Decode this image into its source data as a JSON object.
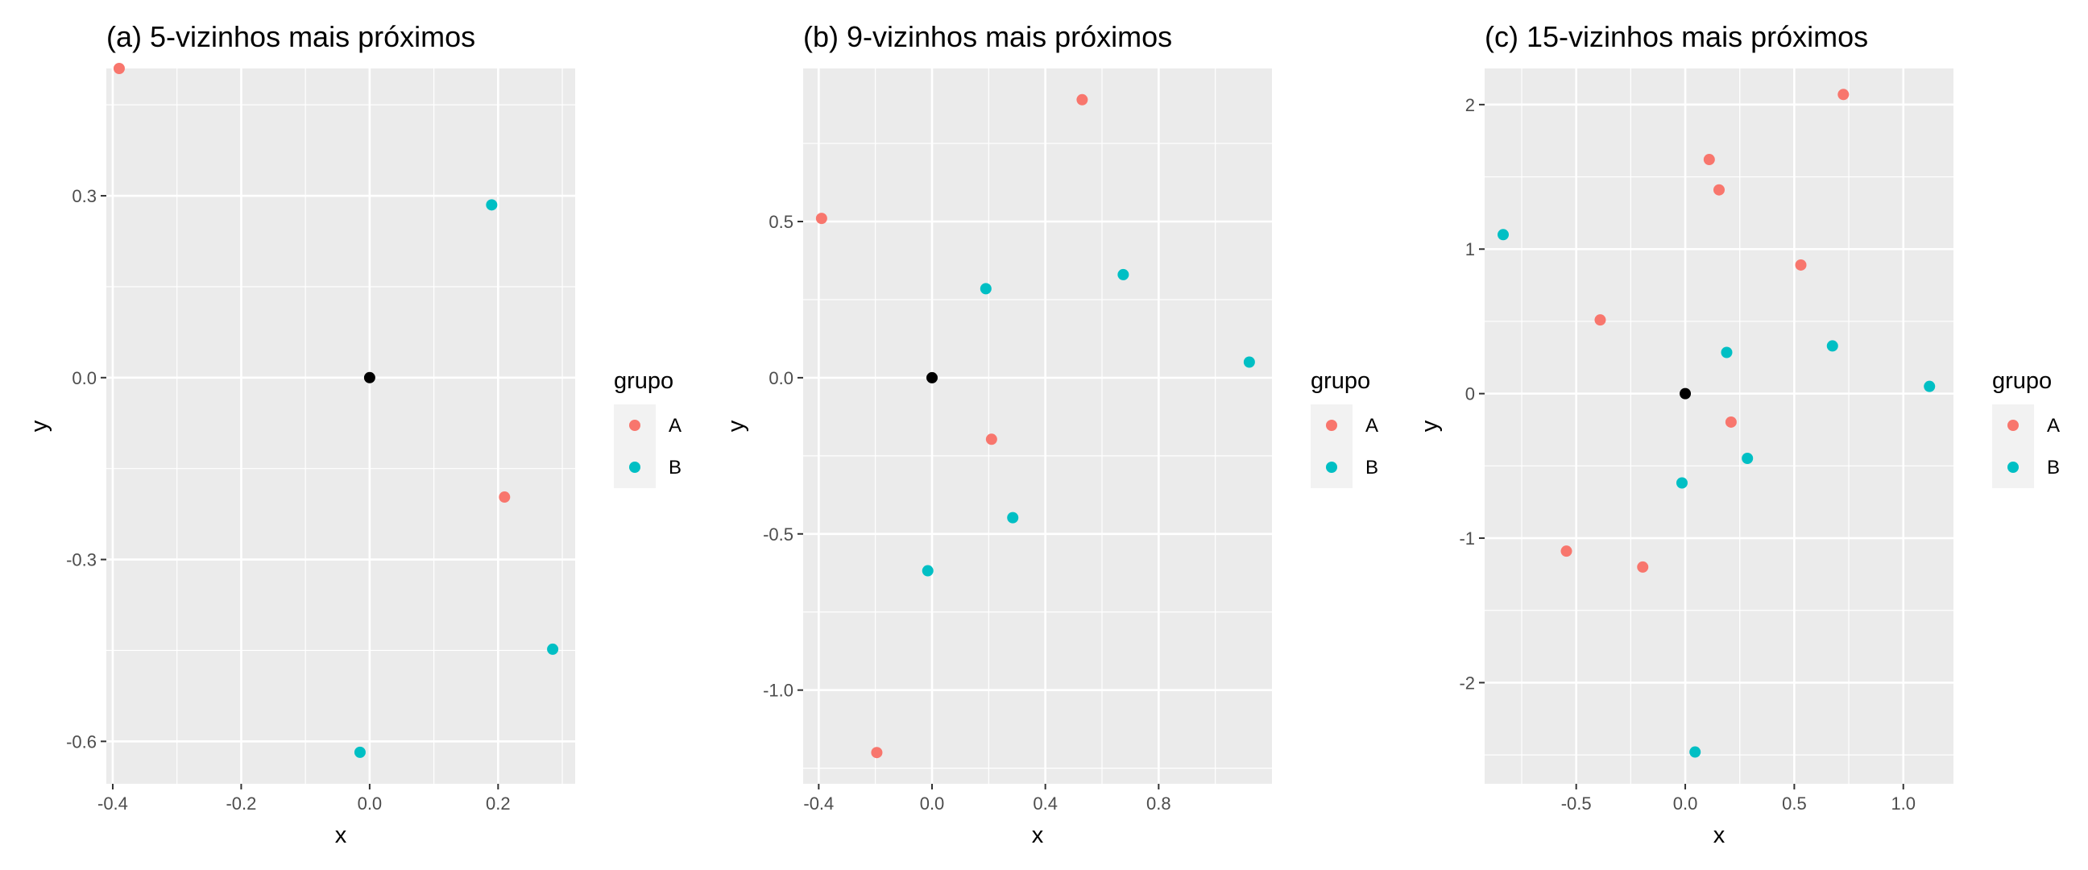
{
  "colors": {
    "A": "#F8766D",
    "B": "#00BFC4",
    "query": "#000000",
    "panel_bg": "#EBEBEB",
    "grid": "#FFFFFF"
  },
  "legend": {
    "title": "grupo",
    "labels": [
      "A",
      "B"
    ]
  },
  "chart_data": [
    {
      "type": "scatter",
      "title": "(a) 5-vizinhos mais próximos",
      "xlabel": "x",
      "ylabel": "y",
      "xlim": [
        -0.41,
        0.32
      ],
      "ylim": [
        -0.67,
        0.51
      ],
      "xticks": [
        -0.4,
        -0.2,
        0.0,
        0.2
      ],
      "xtick_labels": [
        "-0.4",
        "-0.2",
        "0.0",
        "0.2"
      ],
      "yticks": [
        -0.6,
        -0.3,
        0.0,
        0.3
      ],
      "ytick_labels": [
        "-0.6",
        "-0.3",
        "0.0",
        "0.3"
      ],
      "grid": true,
      "legend_position": "right",
      "points": [
        {
          "x": -0.39,
          "y": 0.51,
          "group": "A"
        },
        {
          "x": 0.19,
          "y": 0.285,
          "group": "B"
        },
        {
          "x": 0.0,
          "y": 0.0,
          "group": "query"
        },
        {
          "x": 0.21,
          "y": -0.197,
          "group": "A"
        },
        {
          "x": 0.285,
          "y": -0.448,
          "group": "B"
        },
        {
          "x": -0.015,
          "y": -0.618,
          "group": "B"
        }
      ]
    },
    {
      "type": "scatter",
      "title": "(b) 9-vizinhos mais próximos",
      "xlabel": "x",
      "ylabel": "y",
      "xlim": [
        -0.455,
        1.2
      ],
      "ylim": [
        -1.3,
        0.99
      ],
      "xticks": [
        -0.4,
        0.0,
        0.4,
        0.8
      ],
      "xtick_labels": [
        "-0.4",
        "0.0",
        "0.4",
        "0.8"
      ],
      "yticks": [
        -1.0,
        -0.5,
        0.0,
        0.5
      ],
      "ytick_labels": [
        "-1.0",
        "-0.5",
        "0.0",
        "0.5"
      ],
      "grid": true,
      "legend_position": "right",
      "points": [
        {
          "x": 0.53,
          "y": 0.89,
          "group": "A"
        },
        {
          "x": -0.39,
          "y": 0.51,
          "group": "A"
        },
        {
          "x": 0.19,
          "y": 0.285,
          "group": "B"
        },
        {
          "x": 0.675,
          "y": 0.33,
          "group": "B"
        },
        {
          "x": 1.12,
          "y": 0.05,
          "group": "B"
        },
        {
          "x": 0.0,
          "y": 0.0,
          "group": "query"
        },
        {
          "x": 0.21,
          "y": -0.197,
          "group": "A"
        },
        {
          "x": 0.285,
          "y": -0.448,
          "group": "B"
        },
        {
          "x": -0.015,
          "y": -0.618,
          "group": "B"
        },
        {
          "x": -0.195,
          "y": -1.2,
          "group": "A"
        }
      ]
    },
    {
      "type": "scatter",
      "title": "(c) 15-vizinhos mais próximos",
      "xlabel": "x",
      "ylabel": "y",
      "xlim": [
        -0.92,
        1.23
      ],
      "ylim": [
        -2.7,
        2.25
      ],
      "xticks": [
        -0.5,
        0.0,
        0.5,
        1.0
      ],
      "xtick_labels": [
        "-0.5",
        "0.0",
        "0.5",
        "1.0"
      ],
      "yticks": [
        -2,
        -1,
        0,
        1,
        2
      ],
      "ytick_labels": [
        "-2",
        "-1",
        "0",
        "1",
        "2"
      ],
      "grid": true,
      "legend_position": "right",
      "points": [
        {
          "x": 0.725,
          "y": 2.07,
          "group": "A"
        },
        {
          "x": 0.11,
          "y": 1.62,
          "group": "A"
        },
        {
          "x": 0.155,
          "y": 1.41,
          "group": "A"
        },
        {
          "x": -0.835,
          "y": 1.1,
          "group": "B"
        },
        {
          "x": 0.53,
          "y": 0.89,
          "group": "A"
        },
        {
          "x": -0.39,
          "y": 0.51,
          "group": "A"
        },
        {
          "x": 0.675,
          "y": 0.33,
          "group": "B"
        },
        {
          "x": 0.19,
          "y": 0.285,
          "group": "B"
        },
        {
          "x": 1.12,
          "y": 0.05,
          "group": "B"
        },
        {
          "x": 0.0,
          "y": 0.0,
          "group": "query"
        },
        {
          "x": 0.21,
          "y": -0.197,
          "group": "A"
        },
        {
          "x": 0.285,
          "y": -0.448,
          "group": "B"
        },
        {
          "x": -0.015,
          "y": -0.618,
          "group": "B"
        },
        {
          "x": -0.545,
          "y": -1.09,
          "group": "A"
        },
        {
          "x": -0.195,
          "y": -1.2,
          "group": "A"
        },
        {
          "x": 0.045,
          "y": -2.48,
          "group": "B"
        }
      ]
    }
  ]
}
